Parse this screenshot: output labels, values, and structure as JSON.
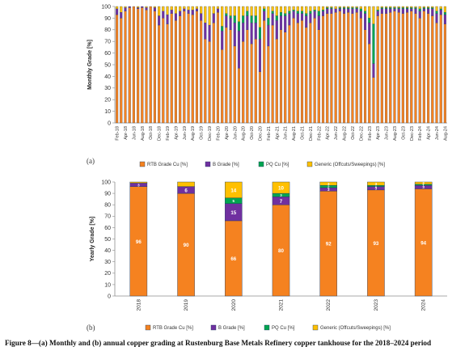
{
  "caption": "Figure 8—(a) Monthly and (b) annual copper grading at Rustenburg Base Metals Refinery copper tankhouse for the 2018–2024 period",
  "panel_a_label": "(a)",
  "panel_b_label": "(b)",
  "colors": {
    "rtb": "#f58220",
    "b": "#7030a0",
    "pq": "#00a550",
    "generic": "#ffc000",
    "edge": "#1f3a5f",
    "axis": "#8c8c8c"
  },
  "chart_data": [
    {
      "type": "bar",
      "stacked": true,
      "panel": "(a)",
      "title": "",
      "xlabel": "",
      "ylabel": "Monthly Grade [%]",
      "ylim": [
        0,
        100
      ],
      "yticks": [
        0,
        10,
        20,
        30,
        40,
        50,
        60,
        70,
        80,
        90,
        100
      ],
      "legend": "bottom",
      "categories": [
        "Feb-18",
        "Mar-18",
        "Apr-18",
        "May-18",
        "Jun-18",
        "Jul-18",
        "Aug-18",
        "Sep-18",
        "Oct-18",
        "Nov-18",
        "Dec-18",
        "Jan-19",
        "Feb-19",
        "Mar-19",
        "Apr-19",
        "May-19",
        "Jun-19",
        "Jul-19",
        "Aug-19",
        "Sep-19",
        "Oct-19",
        "Nov-19",
        "Dec-19",
        "Jan-20",
        "Feb-20",
        "Mar-20",
        "Apr-20",
        "May-20",
        "Jun-20",
        "Jul-20",
        "Aug-20",
        "Sep-20",
        "Oct-20",
        "Nov-20",
        "Dec-20",
        "Jan-21",
        "Feb-21",
        "Mar-21",
        "Apr-21",
        "May-21",
        "Jun-21",
        "Jul-21",
        "Aug-21",
        "Sep-21",
        "Oct-21",
        "Nov-21",
        "Dec-21",
        "Jan-22",
        "Feb-22",
        "Mar-22",
        "Apr-22",
        "May-22",
        "Jun-22",
        "Jul-22",
        "Aug-22",
        "Sep-22",
        "Oct-22",
        "Nov-22",
        "Dec-22",
        "Jan-23",
        "Feb-23",
        "Mar-23",
        "Apr-23",
        "May-23",
        "Jun-23",
        "Jul-23",
        "Aug-23",
        "Sep-23",
        "Oct-23",
        "Nov-23",
        "Dec-23",
        "Jan-24",
        "Feb-24",
        "Mar-24",
        "Apr-24",
        "May-24",
        "Jun-24",
        "Jul-24",
        "Aug-24"
      ],
      "xtick_labels": [
        "Feb-18",
        "Apr-18",
        "Jun-18",
        "Aug-18",
        "Oct-18",
        "Dec-18",
        "Feb-19",
        "Apr-19",
        "Jun-19",
        "Aug-19",
        "Oct-19",
        "Dec-19",
        "Feb-20",
        "Apr-20",
        "Jun-20",
        "Aug-20",
        "Oct-20",
        "Dec-20",
        "Feb-21",
        "Apr-21",
        "Jun-21",
        "Aug-21",
        "Oct-21",
        "Dec-21",
        "Feb-22",
        "Apr-22",
        "Jun-22",
        "Aug-22",
        "Oct-22",
        "Dec-22",
        "Feb-23",
        "Apr-23",
        "Jun-23",
        "Aug-23",
        "Oct-23",
        "Dec-23",
        "Feb-24",
        "Apr-24",
        "Jun-24",
        "Aug-24"
      ],
      "series": [
        {
          "name": "RTB Grade Cu [%]",
          "values": [
            93,
            90,
            96,
            99,
            100,
            98,
            99,
            97,
            100,
            96,
            84,
            90,
            85,
            94,
            88,
            92,
            96,
            94,
            93,
            96,
            88,
            72,
            70,
            86,
            95,
            63,
            82,
            80,
            66,
            47,
            70,
            80,
            68,
            72,
            44,
            88,
            66,
            84,
            72,
            80,
            78,
            84,
            90,
            86,
            88,
            82,
            86,
            90,
            80,
            92,
            94,
            94,
            95,
            96,
            94,
            95,
            94,
            95,
            90,
            80,
            68,
            39,
            92,
            94,
            94,
            95,
            96,
            95,
            94,
            95,
            96,
            94,
            90,
            96,
            94,
            92,
            86,
            93,
            85
          ]
        },
        {
          "name": "B Grade [%]",
          "values": [
            5,
            5,
            3,
            1,
            0,
            1,
            1,
            2,
            0,
            3,
            8,
            6,
            8,
            3,
            6,
            4,
            2,
            3,
            4,
            2,
            6,
            14,
            14,
            8,
            3,
            16,
            10,
            10,
            20,
            32,
            16,
            12,
            18,
            14,
            28,
            8,
            18,
            10,
            16,
            12,
            14,
            10,
            6,
            8,
            6,
            10,
            8,
            6,
            12,
            4,
            4,
            4,
            3,
            2,
            4,
            3,
            4,
            3,
            6,
            14,
            18,
            12,
            4,
            4,
            4,
            3,
            2,
            3,
            4,
            3,
            2,
            4,
            6,
            2,
            4,
            6,
            8,
            4,
            8
          ]
        },
        {
          "name": "PQ Cu [%]",
          "values": [
            0,
            0,
            0,
            0,
            0,
            0,
            0,
            0,
            0,
            0,
            0,
            0,
            0,
            0,
            0,
            0,
            0,
            0,
            0,
            0,
            0,
            0,
            0,
            0,
            0,
            4,
            2,
            2,
            6,
            8,
            6,
            4,
            6,
            6,
            10,
            2,
            6,
            2,
            4,
            3,
            2,
            2,
            1,
            2,
            2,
            2,
            2,
            1,
            4,
            1,
            1,
            1,
            0,
            1,
            1,
            1,
            1,
            1,
            2,
            2,
            4,
            34,
            1,
            1,
            1,
            1,
            1,
            1,
            1,
            1,
            1,
            1,
            2,
            1,
            1,
            1,
            2,
            1,
            2
          ]
        },
        {
          "name": "Generic (Offcuts/Sweepings) [%]",
          "values": [
            2,
            5,
            1,
            0,
            0,
            1,
            0,
            1,
            0,
            1,
            8,
            4,
            7,
            3,
            6,
            4,
            2,
            3,
            3,
            2,
            6,
            14,
            16,
            6,
            2,
            17,
            6,
            8,
            8,
            13,
            8,
            4,
            8,
            8,
            18,
            2,
            10,
            4,
            8,
            5,
            6,
            4,
            3,
            4,
            4,
            6,
            4,
            3,
            4,
            3,
            1,
            1,
            2,
            1,
            1,
            1,
            1,
            1,
            2,
            4,
            10,
            15,
            3,
            1,
            1,
            1,
            1,
            1,
            1,
            1,
            1,
            1,
            2,
            1,
            1,
            1,
            4,
            2,
            5
          ]
        }
      ]
    },
    {
      "type": "bar",
      "stacked": true,
      "panel": "(b)",
      "title": "",
      "xlabel": "",
      "ylabel": "Yearly Grade [%]",
      "ylim": [
        0,
        100
      ],
      "yticks": [
        0,
        10,
        20,
        30,
        40,
        50,
        60,
        70,
        80,
        90,
        100
      ],
      "legend": "bottom",
      "categories": [
        "2018",
        "2019",
        "2020",
        "2021",
        "2022",
        "2023",
        "2024"
      ],
      "series": [
        {
          "name": "RTB Grade Cu [%]",
          "values": [
            96,
            90,
            66,
            80,
            92,
            93,
            94
          ],
          "labels": [
            "96",
            "90",
            "66",
            "80",
            "92",
            "93",
            "94"
          ]
        },
        {
          "name": "B Grade [%]",
          "values": [
            3,
            6,
            15,
            7,
            3,
            3,
            3
          ],
          "labels": [
            "3",
            "6",
            "15",
            "7",
            "3",
            "3",
            "3"
          ]
        },
        {
          "name": "PQ Cu [%]",
          "values": [
            0,
            0,
            5,
            3,
            2,
            1,
            1
          ],
          "labels": [
            "",
            "",
            "5",
            "3",
            "2",
            "1",
            "1"
          ]
        },
        {
          "name": "Generic (Offcuts/Sweepings) [%]",
          "values": [
            1,
            4,
            14,
            10,
            3,
            3,
            2
          ],
          "labels": [
            "",
            "",
            "14",
            "10",
            "3",
            "3",
            "2"
          ]
        }
      ]
    }
  ]
}
